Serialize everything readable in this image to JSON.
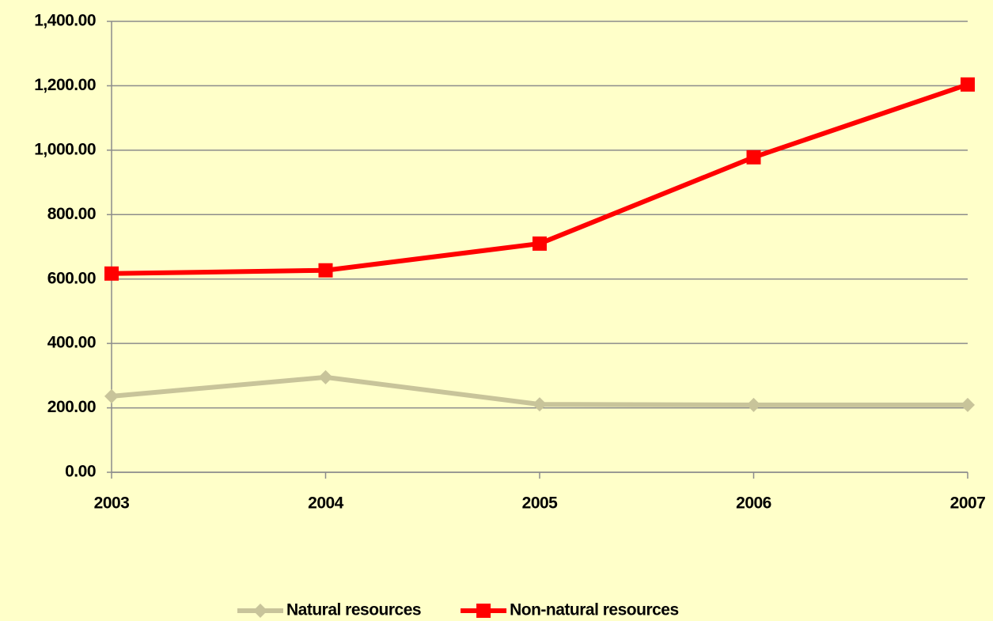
{
  "chart_data": {
    "type": "line",
    "categories": [
      "2003",
      "2004",
      "2005",
      "2006",
      "2007"
    ],
    "series": [
      {
        "name": "Natural resources",
        "color": "#c8c49a",
        "marker": "diamond",
        "values": [
          236,
          295,
          211,
          209,
          209
        ]
      },
      {
        "name": "Non-natural resources",
        "color": "#ff0000",
        "marker": "square",
        "values": [
          617,
          627,
          710,
          978,
          1204
        ]
      }
    ],
    "ylim": [
      0,
      1400
    ],
    "yticks": [
      {
        "value": 0,
        "label": "0.00"
      },
      {
        "value": 200,
        "label": "200.00"
      },
      {
        "value": 400,
        "label": "400.00"
      },
      {
        "value": 600,
        "label": "600.00"
      },
      {
        "value": 800,
        "label": "800.00"
      },
      {
        "value": 1000,
        "label": "1,000.00"
      },
      {
        "value": 1200,
        "label": "1,200.00"
      },
      {
        "value": 1400,
        "label": "1,400.00"
      }
    ],
    "grid": true,
    "legend": "bottom"
  }
}
